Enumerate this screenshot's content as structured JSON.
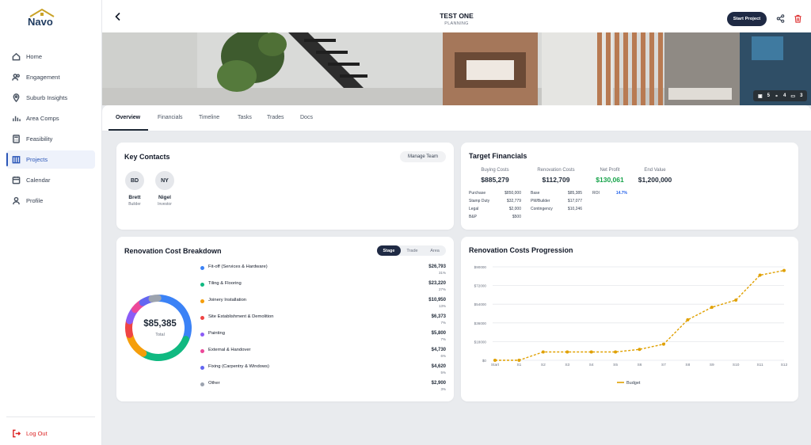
{
  "brand": {
    "name": "Navo"
  },
  "sidebar": {
    "items": [
      {
        "label": "Home",
        "icon": "home-icon"
      },
      {
        "label": "Engagement",
        "icon": "users-icon"
      },
      {
        "label": "Suburb Insights",
        "icon": "map-pin-icon"
      },
      {
        "label": "Area Comps",
        "icon": "bar-chart-icon"
      },
      {
        "label": "Feasibility",
        "icon": "calculator-icon"
      },
      {
        "label": "Projects",
        "icon": "building-icon",
        "active": true
      },
      {
        "label": "Calendar",
        "icon": "calendar-icon"
      },
      {
        "label": "Profile",
        "icon": "user-icon"
      }
    ],
    "logout": "Log Out"
  },
  "header": {
    "title": "TEST ONE",
    "subtitle": "PLANNING",
    "start_button": "Start Project"
  },
  "hero": {
    "beds": "5",
    "baths": "4",
    "cars": "3"
  },
  "tabs": [
    "Overview",
    "Financials",
    "Timeline",
    "Tasks",
    "Trades",
    "Docs"
  ],
  "key_contacts": {
    "title": "Key Contacts",
    "manage_button": "Manage Team",
    "contacts": [
      {
        "initials": "BD",
        "name": "Brett",
        "role": "Builder"
      },
      {
        "initials": "NY",
        "name": "Nigel",
        "role": "Investor"
      }
    ]
  },
  "target_financials": {
    "title": "Target Financials",
    "columns": [
      {
        "label": "Buying Costs",
        "value": "$885,279",
        "rows": [
          [
            "Purchase",
            "$850,000"
          ],
          [
            "Stamp Duty",
            "$32,779"
          ],
          [
            "Legal",
            "$2,000"
          ],
          [
            "B&P",
            "$500"
          ]
        ]
      },
      {
        "label": "Renovation Costs",
        "value": "$112,709",
        "rows": [
          [
            "Base",
            "$85,385"
          ],
          [
            "PM/Builder",
            "$17,077"
          ],
          [
            "Contingency",
            "$10,246"
          ]
        ]
      },
      {
        "label": "Net Profit",
        "value": "$130,061",
        "rows": [
          [
            "ROI",
            "14.7%"
          ]
        ]
      },
      {
        "label": "End Value",
        "value": "$1,200,000",
        "rows": []
      }
    ],
    "profit_color": "#16a34a",
    "roi_color": "#2563eb"
  },
  "breakdown": {
    "title": "Renovation Cost Breakdown",
    "toggle": [
      "Stage",
      "Trade",
      "Area"
    ],
    "total": "$85,385",
    "total_label": "Total",
    "items": [
      {
        "name": "Fit-off (Services & Hardware)",
        "value": "$26,793",
        "pct": "31%",
        "amount": 26793,
        "color": "#3b82f6"
      },
      {
        "name": "Tiling & Flooring",
        "value": "$23,220",
        "pct": "27%",
        "amount": 23220,
        "color": "#10b981"
      },
      {
        "name": "Joinery Installation",
        "value": "$10,950",
        "pct": "13%",
        "amount": 10950,
        "color": "#f59e0b"
      },
      {
        "name": "Site Establishment & Demolition",
        "value": "$6,373",
        "pct": "7%",
        "amount": 6373,
        "color": "#ef4444"
      },
      {
        "name": "Painting",
        "value": "$5,800",
        "pct": "7%",
        "amount": 5800,
        "color": "#8b5cf6"
      },
      {
        "name": "External & Handover",
        "value": "$4,730",
        "pct": "6%",
        "amount": 4730,
        "color": "#ec4899"
      },
      {
        "name": "Fixing (Carpentry & Windows)",
        "value": "$4,620",
        "pct": "5%",
        "amount": 4620,
        "color": "#6366f1"
      },
      {
        "name": "Other",
        "value": "$2,900",
        "pct": "3%",
        "amount": 2900,
        "color": "#9ca3af"
      }
    ]
  },
  "chart_data": {
    "type": "line",
    "title": "Renovation Costs Progression",
    "categories": [
      "Start",
      "S1",
      "S2",
      "S3",
      "S4",
      "S5",
      "S6",
      "S7",
      "S8",
      "S9",
      "S10",
      "S11",
      "S12"
    ],
    "series": [
      {
        "name": "Budget",
        "color": "#e0a000",
        "values": [
          0,
          0,
          8000,
          8000,
          8000,
          8000,
          10500,
          15500,
          39000,
          51000,
          58000,
          82000,
          86500
        ]
      }
    ],
    "yticks": [
      "$0",
      "$18000",
      "$36000",
      "$54000",
      "$72000",
      "$90000"
    ],
    "ylim": [
      0,
      90000
    ],
    "grid": true,
    "legend": "bottom"
  }
}
